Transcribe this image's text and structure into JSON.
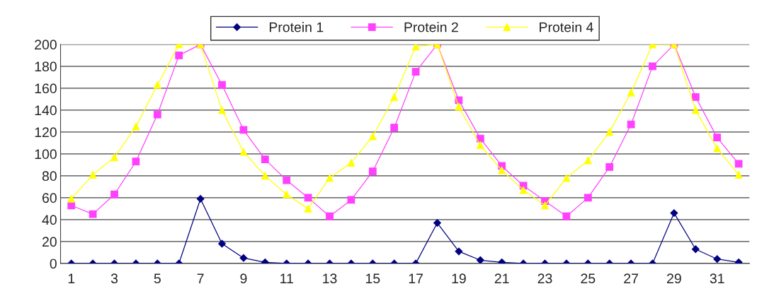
{
  "chart_data": {
    "type": "line",
    "categories": [
      "1",
      null,
      "3",
      null,
      "5",
      null,
      "7",
      null,
      "9",
      null,
      "11",
      null,
      "13",
      null,
      "15",
      null,
      "17",
      null,
      "19",
      null,
      "21",
      null,
      "23",
      null,
      "25",
      null,
      "27",
      null,
      "29",
      null,
      "31",
      null
    ],
    "series": [
      {
        "name": "Protein 1",
        "color": "#000080",
        "marker": "diamond",
        "values": [
          0,
          0,
          0,
          0,
          0,
          0,
          59,
          18,
          5,
          1,
          0,
          0,
          0,
          0,
          0,
          0,
          0,
          37,
          11,
          3,
          1,
          0,
          0,
          0,
          0,
          0,
          0,
          0,
          46,
          13,
          4,
          1
        ]
      },
      {
        "name": "Protein 2",
        "color": "#ff40ff",
        "marker": "square",
        "values": [
          53,
          45,
          63,
          93,
          136,
          190,
          200,
          163,
          122,
          95,
          76,
          60,
          43,
          58,
          84,
          124,
          175,
          200,
          149,
          114,
          89,
          71,
          57,
          43,
          60,
          88,
          127,
          180,
          200,
          152,
          115,
          91
        ]
      },
      {
        "name": "Protein 4",
        "color": "#ffff00",
        "marker": "triangle",
        "values": [
          59,
          81,
          97,
          125,
          163,
          200,
          200,
          140,
          102,
          80,
          63,
          50,
          78,
          92,
          116,
          152,
          198,
          200,
          143,
          108,
          85,
          67,
          53,
          78,
          94,
          120,
          156,
          200,
          200,
          140,
          105,
          81
        ]
      }
    ],
    "ylim": [
      0,
      200
    ],
    "yticks": [
      0,
      20,
      40,
      60,
      80,
      100,
      120,
      140,
      160,
      180,
      200
    ],
    "grid": "y",
    "legend": "top",
    "line_style": "solid"
  }
}
